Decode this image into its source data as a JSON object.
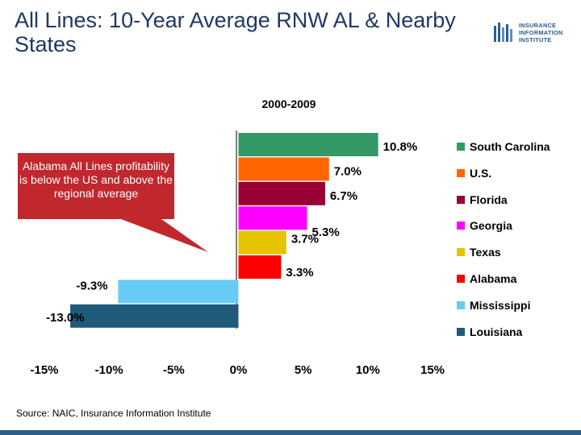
{
  "page": {
    "title": "All Lines: 10-Year Average RNW AL & Nearby States",
    "source": "Source: NAIC, Insurance Information Institute",
    "logo": {
      "line1": "INSURANCE",
      "line2": "INFORMATION",
      "line3": "INSTITUTE"
    }
  },
  "callout": {
    "text": "Alabama All Lines profitability is below the US and above the regional average",
    "color": "#c0282d"
  },
  "chart_data": {
    "type": "bar",
    "orientation": "horizontal",
    "subtitle": "2000-2009",
    "xlim": [
      -15,
      15
    ],
    "xticks": [
      -15,
      -10,
      -5,
      0,
      5,
      10,
      15
    ],
    "xtick_labels": [
      "-15%",
      "-10%",
      "-5%",
      "0%",
      "5%",
      "10%",
      "15%"
    ],
    "legend_position": "right",
    "grid": false,
    "categories": [
      "South Carolina",
      "U.S.",
      "Florida",
      "Georgia",
      "Texas",
      "Alabama",
      "Mississippi",
      "Louisiana"
    ],
    "values": [
      10.8,
      7.0,
      6.7,
      5.3,
      3.7,
      3.3,
      -9.3,
      -13.0
    ],
    "value_labels": [
      "10.8%",
      "7.0%",
      "6.7%",
      "5.3%",
      "3.7%",
      "3.3%",
      "-9.3%",
      "-13.0%"
    ],
    "colors": [
      "#339966",
      "#ff6600",
      "#990033",
      "#ff00ff",
      "#e6c300",
      "#ff0000",
      "#66ccf5",
      "#1f5a7a"
    ]
  }
}
